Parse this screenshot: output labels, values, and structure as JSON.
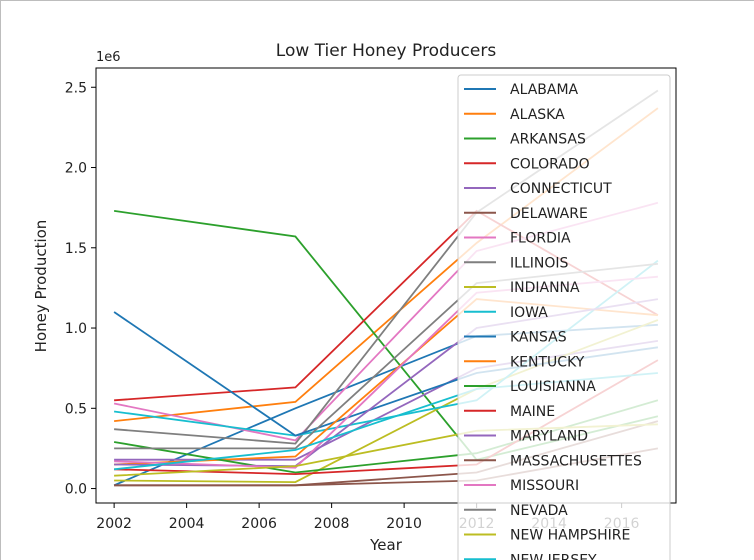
{
  "chart_data": {
    "type": "line",
    "title": "Low Tier Honey Producers",
    "xlabel": "Year",
    "ylabel": "Honey Production",
    "y_offset_label": "1e6",
    "xlim": [
      2001.5,
      2017.5
    ],
    "ylim": [
      -0.09,
      2.62
    ],
    "x_ticks": [
      2002,
      2004,
      2006,
      2008,
      2010,
      2012,
      2014,
      2016
    ],
    "x_tick_labels": [
      "2002",
      "2004",
      "2006",
      "2008",
      "2010",
      "2012",
      "2014",
      "2016"
    ],
    "y_ticks": [
      0.0,
      0.5,
      1.0,
      1.5,
      2.0,
      2.5
    ],
    "y_tick_labels": [
      "0.0",
      "0.5",
      "1.0",
      "1.5",
      "2.0",
      "2.5"
    ],
    "grid": false,
    "legend_position": "top-right",
    "x": [
      2002,
      2007,
      2012,
      2017
    ],
    "series": [
      {
        "name": "ALABAMA",
        "color": "#1f77b4",
        "values": [
          0.02,
          0.5,
          0.95,
          1.02
        ]
      },
      {
        "name": "ALASKA",
        "color": "#ff7f0e",
        "values": [
          0.42,
          0.54,
          1.53,
          2.37
        ]
      },
      {
        "name": "ARKANSAS",
        "color": "#2ca02c",
        "values": [
          1.73,
          1.57,
          0.18,
          0.45
        ]
      },
      {
        "name": "COLORADO",
        "color": "#d62728",
        "values": [
          0.55,
          0.63,
          1.73,
          1.08
        ]
      },
      {
        "name": "CONNECTICUT",
        "color": "#9467bd",
        "values": [
          0.18,
          0.18,
          0.75,
          0.92
        ]
      },
      {
        "name": "DELAWARE",
        "color": "#8c564b",
        "values": [
          0.02,
          0.02,
          0.05,
          0.25
        ]
      },
      {
        "name": "FLORDIA",
        "color": "#e377c2",
        "values": [
          0.53,
          0.3,
          1.48,
          1.78
        ]
      },
      {
        "name": "ILLINOIS",
        "color": "#7f7f7f",
        "values": [
          0.37,
          0.28,
          1.72,
          2.48
        ]
      },
      {
        "name": "INDIANNA",
        "color": "#bcbd22",
        "values": [
          0.05,
          0.04,
          0.62,
          1.05
        ]
      },
      {
        "name": "IOWA",
        "color": "#17becf",
        "values": [
          0.48,
          0.33,
          0.55,
          1.42
        ]
      },
      {
        "name": "KANSAS",
        "color": "#1f77b4",
        "values": [
          1.1,
          0.33,
          0.72,
          0.88
        ]
      },
      {
        "name": "KENTUCKY",
        "color": "#ff7f0e",
        "values": [
          0.15,
          0.2,
          1.18,
          1.08
        ]
      },
      {
        "name": "LOUISIANNA",
        "color": "#2ca02c",
        "values": [
          0.29,
          0.1,
          0.22,
          0.55
        ]
      },
      {
        "name": "MAINE",
        "color": "#d62728",
        "values": [
          0.12,
          0.09,
          0.15,
          0.8
        ]
      },
      {
        "name": "MARYLAND",
        "color": "#9467bd",
        "values": [
          0.15,
          0.14,
          1.0,
          1.18
        ]
      },
      {
        "name": "MASSACHUSETTES",
        "color": "#8c564b",
        "values": [
          0.02,
          0.02,
          0.1,
          0.42
        ]
      },
      {
        "name": "MISSOURI",
        "color": "#e377c2",
        "values": [
          0.17,
          0.13,
          1.22,
          1.32
        ]
      },
      {
        "name": "NEVADA",
        "color": "#7f7f7f",
        "values": [
          0.25,
          0.25,
          1.28,
          1.4
        ]
      },
      {
        "name": "NEW HAMPSHIRE",
        "color": "#bcbd22",
        "values": [
          0.08,
          0.14,
          0.36,
          0.4
        ]
      },
      {
        "name": "NEW JERSEY",
        "color": "#17becf",
        "values": [
          0.12,
          0.24,
          0.62,
          0.72
        ]
      }
    ]
  }
}
